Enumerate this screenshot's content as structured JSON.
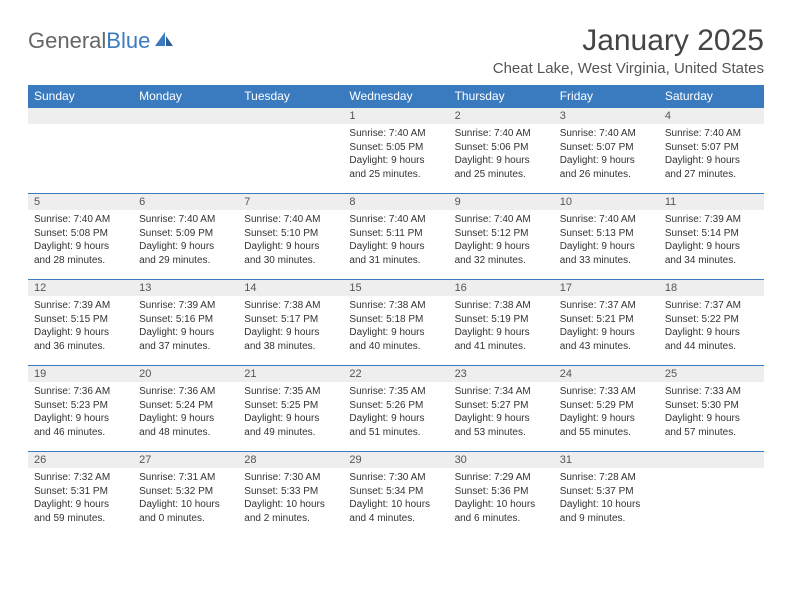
{
  "brand": {
    "part1": "General",
    "part2": "Blue"
  },
  "title": "January 2025",
  "location": "Cheat Lake, West Virginia, United States",
  "colors": {
    "header_bg": "#3a7bbf",
    "header_text": "#ffffff",
    "daynum_bg": "#eeeeee",
    "border": "#3a7bbf",
    "body_text": "#333333"
  },
  "typography": {
    "title_fontsize": 30,
    "location_fontsize": 15,
    "dayheader_fontsize": 12,
    "daynum_fontsize": 11,
    "cell_fontsize": 10
  },
  "day_headers": [
    "Sunday",
    "Monday",
    "Tuesday",
    "Wednesday",
    "Thursday",
    "Friday",
    "Saturday"
  ],
  "weeks": [
    [
      {
        "num": "",
        "lines": []
      },
      {
        "num": "",
        "lines": []
      },
      {
        "num": "",
        "lines": []
      },
      {
        "num": "1",
        "lines": [
          "Sunrise: 7:40 AM",
          "Sunset: 5:05 PM",
          "Daylight: 9 hours",
          "and 25 minutes."
        ]
      },
      {
        "num": "2",
        "lines": [
          "Sunrise: 7:40 AM",
          "Sunset: 5:06 PM",
          "Daylight: 9 hours",
          "and 25 minutes."
        ]
      },
      {
        "num": "3",
        "lines": [
          "Sunrise: 7:40 AM",
          "Sunset: 5:07 PM",
          "Daylight: 9 hours",
          "and 26 minutes."
        ]
      },
      {
        "num": "4",
        "lines": [
          "Sunrise: 7:40 AM",
          "Sunset: 5:07 PM",
          "Daylight: 9 hours",
          "and 27 minutes."
        ]
      }
    ],
    [
      {
        "num": "5",
        "lines": [
          "Sunrise: 7:40 AM",
          "Sunset: 5:08 PM",
          "Daylight: 9 hours",
          "and 28 minutes."
        ]
      },
      {
        "num": "6",
        "lines": [
          "Sunrise: 7:40 AM",
          "Sunset: 5:09 PM",
          "Daylight: 9 hours",
          "and 29 minutes."
        ]
      },
      {
        "num": "7",
        "lines": [
          "Sunrise: 7:40 AM",
          "Sunset: 5:10 PM",
          "Daylight: 9 hours",
          "and 30 minutes."
        ]
      },
      {
        "num": "8",
        "lines": [
          "Sunrise: 7:40 AM",
          "Sunset: 5:11 PM",
          "Daylight: 9 hours",
          "and 31 minutes."
        ]
      },
      {
        "num": "9",
        "lines": [
          "Sunrise: 7:40 AM",
          "Sunset: 5:12 PM",
          "Daylight: 9 hours",
          "and 32 minutes."
        ]
      },
      {
        "num": "10",
        "lines": [
          "Sunrise: 7:40 AM",
          "Sunset: 5:13 PM",
          "Daylight: 9 hours",
          "and 33 minutes."
        ]
      },
      {
        "num": "11",
        "lines": [
          "Sunrise: 7:39 AM",
          "Sunset: 5:14 PM",
          "Daylight: 9 hours",
          "and 34 minutes."
        ]
      }
    ],
    [
      {
        "num": "12",
        "lines": [
          "Sunrise: 7:39 AM",
          "Sunset: 5:15 PM",
          "Daylight: 9 hours",
          "and 36 minutes."
        ]
      },
      {
        "num": "13",
        "lines": [
          "Sunrise: 7:39 AM",
          "Sunset: 5:16 PM",
          "Daylight: 9 hours",
          "and 37 minutes."
        ]
      },
      {
        "num": "14",
        "lines": [
          "Sunrise: 7:38 AM",
          "Sunset: 5:17 PM",
          "Daylight: 9 hours",
          "and 38 minutes."
        ]
      },
      {
        "num": "15",
        "lines": [
          "Sunrise: 7:38 AM",
          "Sunset: 5:18 PM",
          "Daylight: 9 hours",
          "and 40 minutes."
        ]
      },
      {
        "num": "16",
        "lines": [
          "Sunrise: 7:38 AM",
          "Sunset: 5:19 PM",
          "Daylight: 9 hours",
          "and 41 minutes."
        ]
      },
      {
        "num": "17",
        "lines": [
          "Sunrise: 7:37 AM",
          "Sunset: 5:21 PM",
          "Daylight: 9 hours",
          "and 43 minutes."
        ]
      },
      {
        "num": "18",
        "lines": [
          "Sunrise: 7:37 AM",
          "Sunset: 5:22 PM",
          "Daylight: 9 hours",
          "and 44 minutes."
        ]
      }
    ],
    [
      {
        "num": "19",
        "lines": [
          "Sunrise: 7:36 AM",
          "Sunset: 5:23 PM",
          "Daylight: 9 hours",
          "and 46 minutes."
        ]
      },
      {
        "num": "20",
        "lines": [
          "Sunrise: 7:36 AM",
          "Sunset: 5:24 PM",
          "Daylight: 9 hours",
          "and 48 minutes."
        ]
      },
      {
        "num": "21",
        "lines": [
          "Sunrise: 7:35 AM",
          "Sunset: 5:25 PM",
          "Daylight: 9 hours",
          "and 49 minutes."
        ]
      },
      {
        "num": "22",
        "lines": [
          "Sunrise: 7:35 AM",
          "Sunset: 5:26 PM",
          "Daylight: 9 hours",
          "and 51 minutes."
        ]
      },
      {
        "num": "23",
        "lines": [
          "Sunrise: 7:34 AM",
          "Sunset: 5:27 PM",
          "Daylight: 9 hours",
          "and 53 minutes."
        ]
      },
      {
        "num": "24",
        "lines": [
          "Sunrise: 7:33 AM",
          "Sunset: 5:29 PM",
          "Daylight: 9 hours",
          "and 55 minutes."
        ]
      },
      {
        "num": "25",
        "lines": [
          "Sunrise: 7:33 AM",
          "Sunset: 5:30 PM",
          "Daylight: 9 hours",
          "and 57 minutes."
        ]
      }
    ],
    [
      {
        "num": "26",
        "lines": [
          "Sunrise: 7:32 AM",
          "Sunset: 5:31 PM",
          "Daylight: 9 hours",
          "and 59 minutes."
        ]
      },
      {
        "num": "27",
        "lines": [
          "Sunrise: 7:31 AM",
          "Sunset: 5:32 PM",
          "Daylight: 10 hours",
          "and 0 minutes."
        ]
      },
      {
        "num": "28",
        "lines": [
          "Sunrise: 7:30 AM",
          "Sunset: 5:33 PM",
          "Daylight: 10 hours",
          "and 2 minutes."
        ]
      },
      {
        "num": "29",
        "lines": [
          "Sunrise: 7:30 AM",
          "Sunset: 5:34 PM",
          "Daylight: 10 hours",
          "and 4 minutes."
        ]
      },
      {
        "num": "30",
        "lines": [
          "Sunrise: 7:29 AM",
          "Sunset: 5:36 PM",
          "Daylight: 10 hours",
          "and 6 minutes."
        ]
      },
      {
        "num": "31",
        "lines": [
          "Sunrise: 7:28 AM",
          "Sunset: 5:37 PM",
          "Daylight: 10 hours",
          "and 9 minutes."
        ]
      },
      {
        "num": "",
        "lines": []
      }
    ]
  ]
}
